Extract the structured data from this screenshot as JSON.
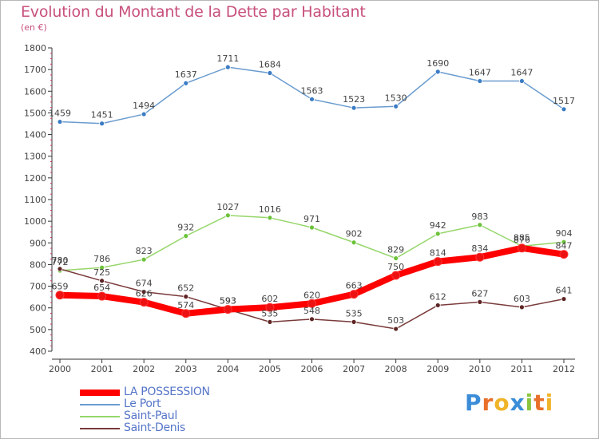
{
  "title": "Evolution du Montant de la Dette par Habitant",
  "unit_note": "(en €)",
  "logo": {
    "letters": [
      "P",
      "r",
      "o",
      "x",
      "i",
      "t",
      "i"
    ],
    "colors": [
      "#3b8dd8",
      "#e8702a",
      "#f0b429",
      "#3b8dd8",
      "#8bc53f",
      "#e8702a",
      "#f0b429"
    ]
  },
  "chart_data": {
    "type": "line",
    "x": [
      "2000",
      "2001",
      "2002",
      "2003",
      "2004",
      "2005",
      "2006",
      "2007",
      "2008",
      "2009",
      "2010",
      "2011",
      "2012"
    ],
    "ylim": [
      400,
      1800
    ],
    "yticks": [
      400,
      500,
      600,
      700,
      800,
      900,
      1000,
      1100,
      1200,
      1300,
      1400,
      1500,
      1600,
      1700,
      1800
    ],
    "grid": false,
    "legend_position": "bottom-left",
    "series": [
      {
        "name": "Le Port",
        "color": "#6a9ccf",
        "marker": "#3b7cc4",
        "width": 1.5,
        "values": [
          1459,
          1451,
          1494,
          1637,
          1711,
          1684,
          1563,
          1523,
          1530,
          1690,
          1647,
          1647,
          1517
        ]
      },
      {
        "name": "Saint-Paul",
        "color": "#96d66a",
        "marker": "#6cc23a",
        "width": 1.5,
        "values": [
          772,
          786,
          823,
          932,
          1027,
          1016,
          971,
          902,
          829,
          942,
          983,
          885,
          904
        ]
      },
      {
        "name": "Saint-Denis",
        "color": "#7a3a3a",
        "marker": "#5e2424",
        "width": 1.5,
        "values": [
          780,
          725,
          674,
          652,
          593,
          535,
          548,
          535,
          503,
          612,
          627,
          603,
          641
        ]
      },
      {
        "name": "LA POSSESSION",
        "color": "#ff0000",
        "marker": "#ee1111",
        "width": 8,
        "values": [
          659,
          654,
          626,
          574,
          593,
          602,
          620,
          663,
          750,
          814,
          834,
          876,
          847
        ]
      }
    ],
    "legend_order": [
      "LA POSSESSION",
      "Le Port",
      "Saint-Paul",
      "Saint-Denis"
    ]
  }
}
